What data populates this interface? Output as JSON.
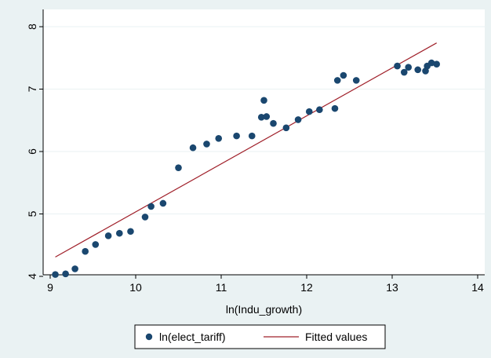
{
  "chart_data": {
    "type": "scatter",
    "xlabel": "ln(Indu_growth)",
    "ylabel": "",
    "xlim": [
      9,
      14
    ],
    "ylim": [
      3.85,
      8.1
    ],
    "x_ticks": [
      9,
      10,
      11,
      12,
      13,
      14
    ],
    "x_tick_labels": [
      "9",
      "10",
      "11",
      "12",
      "13",
      "14"
    ],
    "y_ticks": [
      4,
      5,
      6,
      7,
      8
    ],
    "y_tick_labels": [
      "4",
      "5",
      "6",
      "7",
      "8"
    ],
    "grid": true,
    "legend_position": "bottom",
    "series": [
      {
        "name": "ln(elect_tariff)",
        "kind": "scatter",
        "color": "#1a476f",
        "points": [
          [
            9.06,
            4.03
          ],
          [
            9.18,
            4.04
          ],
          [
            9.29,
            4.12
          ],
          [
            9.41,
            4.4
          ],
          [
            9.53,
            4.51
          ],
          [
            9.68,
            4.65
          ],
          [
            9.81,
            4.69
          ],
          [
            9.94,
            4.72
          ],
          [
            10.11,
            4.95
          ],
          [
            10.18,
            5.12
          ],
          [
            10.32,
            5.17
          ],
          [
            10.5,
            5.74
          ],
          [
            10.67,
            6.06
          ],
          [
            10.83,
            6.12
          ],
          [
            10.97,
            6.21
          ],
          [
            11.18,
            6.25
          ],
          [
            11.36,
            6.25
          ],
          [
            11.47,
            6.55
          ],
          [
            11.5,
            6.82
          ],
          [
            11.53,
            6.56
          ],
          [
            11.61,
            6.45
          ],
          [
            11.76,
            6.38
          ],
          [
            11.9,
            6.51
          ],
          [
            12.03,
            6.64
          ],
          [
            12.15,
            6.67
          ],
          [
            12.33,
            6.69
          ],
          [
            12.36,
            7.14
          ],
          [
            12.43,
            7.22
          ],
          [
            12.58,
            7.14
          ],
          [
            13.06,
            7.37
          ],
          [
            13.14,
            7.27
          ],
          [
            13.19,
            7.35
          ],
          [
            13.3,
            7.31
          ],
          [
            13.39,
            7.29
          ],
          [
            13.41,
            7.37
          ],
          [
            13.46,
            7.42
          ],
          [
            13.52,
            7.4
          ]
        ]
      },
      {
        "name": "Fitted values",
        "kind": "line",
        "color": "#a0202a",
        "points": [
          [
            9.06,
            4.31
          ],
          [
            13.52,
            7.74
          ]
        ]
      }
    ]
  }
}
